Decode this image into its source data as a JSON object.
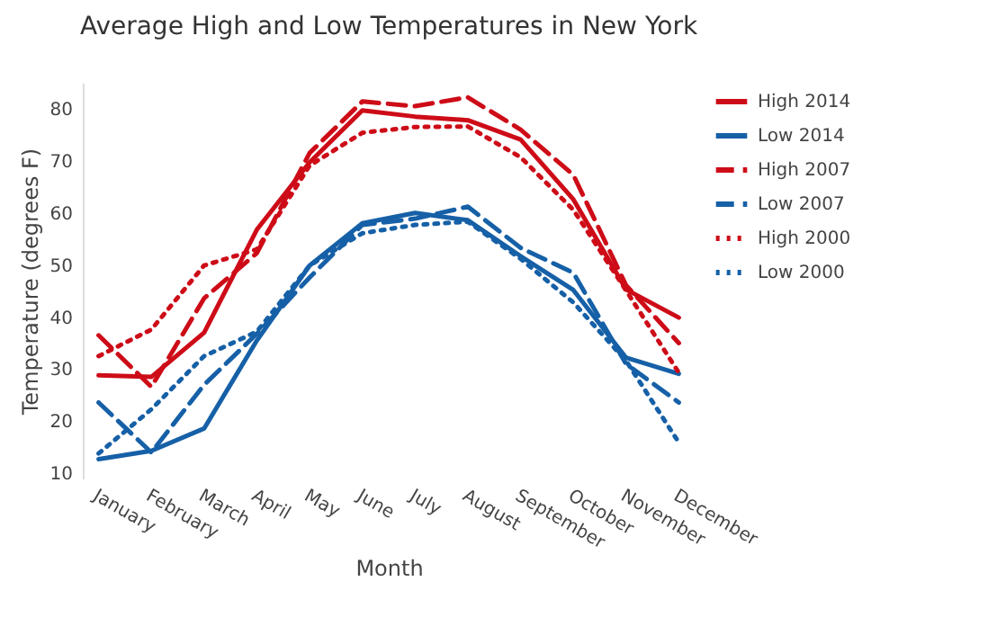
{
  "chart_data": {
    "type": "line",
    "title": "Average High and Low Temperatures in New York",
    "xlabel": "Month",
    "ylabel": "Temperature (degrees F)",
    "categories": [
      "January",
      "February",
      "March",
      "April",
      "May",
      "June",
      "July",
      "August",
      "September",
      "October",
      "November",
      "December"
    ],
    "series": [
      {
        "name": "High 2014",
        "color": "#cd0c18",
        "line_style": "solid",
        "values": [
          28.8,
          28.5,
          37.0,
          56.8,
          69.7,
          79.7,
          78.5,
          77.8,
          74.1,
          62.6,
          45.3,
          39.9
        ]
      },
      {
        "name": "Low 2014",
        "color": "#1660a7",
        "line_style": "solid",
        "values": [
          12.7,
          14.3,
          18.6,
          35.5,
          49.9,
          58.0,
          60.0,
          58.6,
          51.7,
          45.2,
          32.2,
          29.1
        ]
      },
      {
        "name": "High 2007",
        "color": "#cd0c18",
        "line_style": "dashed",
        "values": [
          36.5,
          26.6,
          43.6,
          52.3,
          71.5,
          81.4,
          80.5,
          82.2,
          76.0,
          67.3,
          46.1,
          35.0
        ]
      },
      {
        "name": "Low 2007",
        "color": "#1660a7",
        "line_style": "dashed",
        "values": [
          23.6,
          14.0,
          27.0,
          36.8,
          47.6,
          57.7,
          58.9,
          61.2,
          53.3,
          48.5,
          31.0,
          23.6
        ]
      },
      {
        "name": "High 2000",
        "color": "#cd0c18",
        "line_style": "dotted",
        "values": [
          32.5,
          37.6,
          49.9,
          53.0,
          69.1,
          75.4,
          76.5,
          76.6,
          70.7,
          60.6,
          45.1,
          29.3
        ]
      },
      {
        "name": "Low 2000",
        "color": "#1660a7",
        "line_style": "dotted",
        "values": [
          13.8,
          22.3,
          32.5,
          37.2,
          49.9,
          56.1,
          57.7,
          58.3,
          51.2,
          42.8,
          31.6,
          15.9
        ]
      }
    ],
    "ylim": [
      9,
      85
    ],
    "yticks": [
      10,
      20,
      30,
      40,
      50,
      60,
      70,
      80
    ],
    "grid": false,
    "legend": "top right",
    "marker": "none"
  }
}
